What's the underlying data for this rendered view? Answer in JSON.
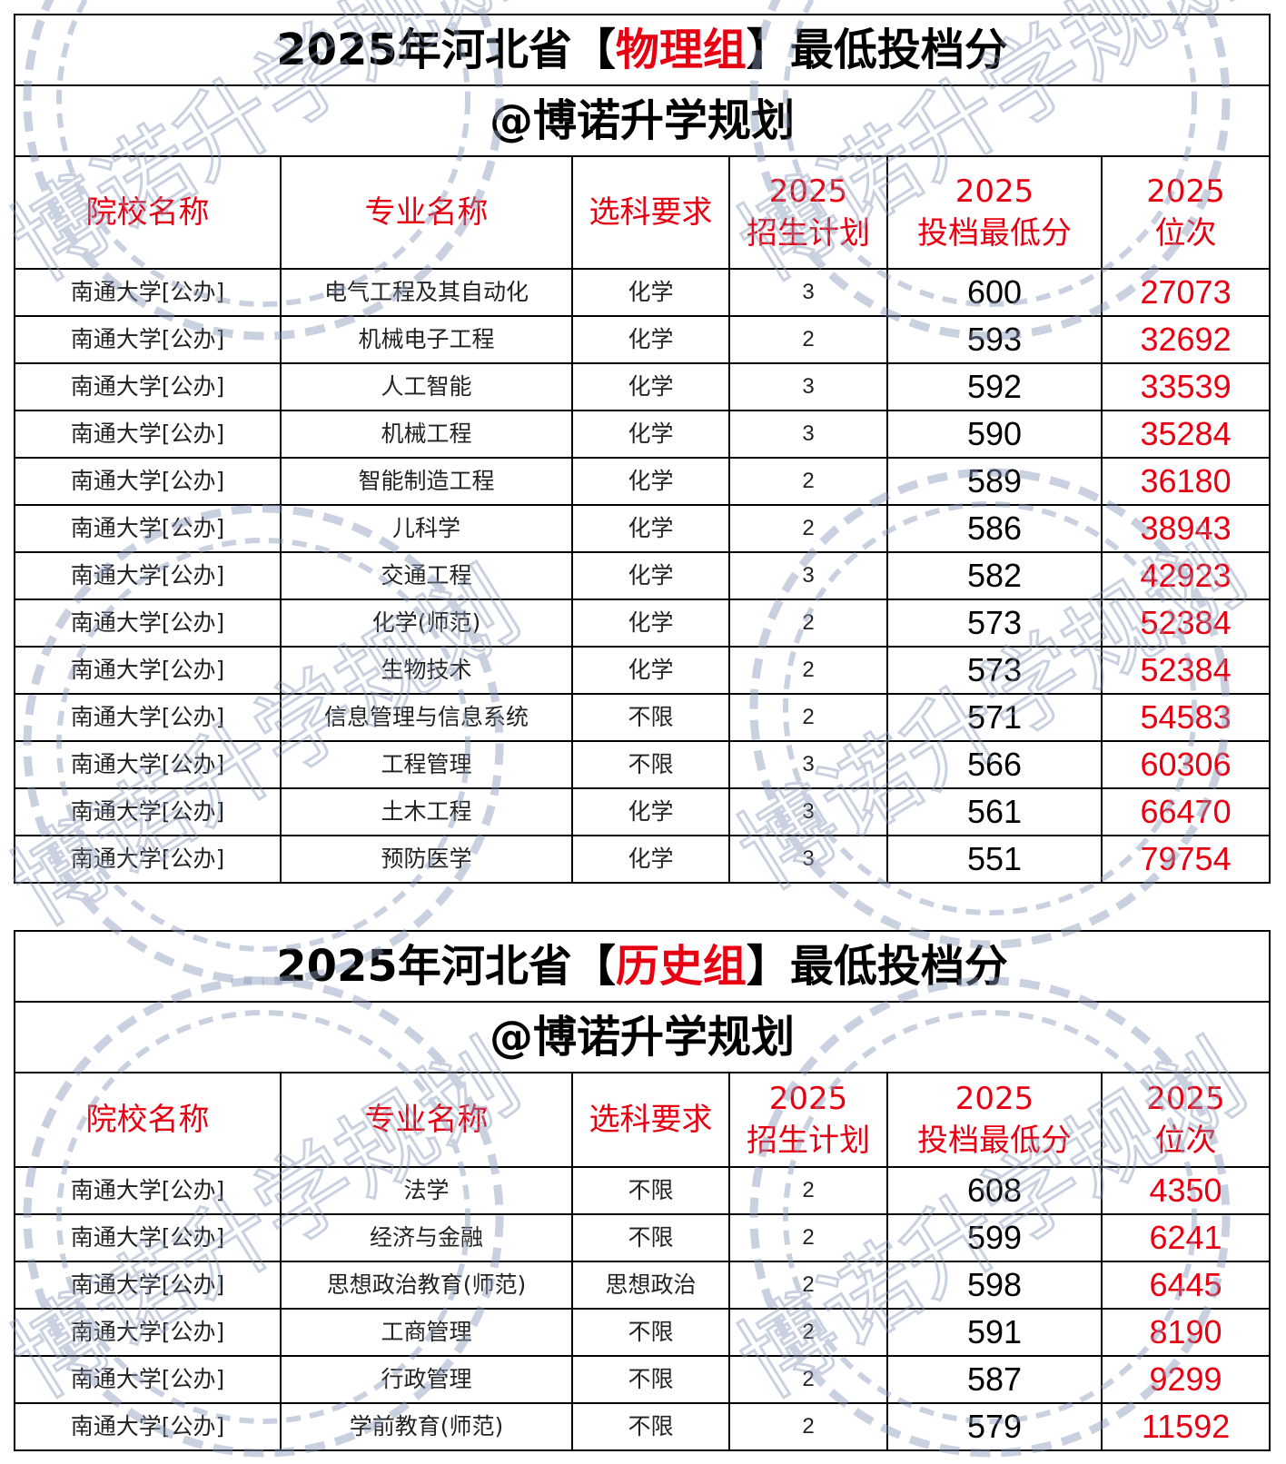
{
  "watermark": "博诺升学规划",
  "colors": {
    "accent": "#e60012",
    "watermark": "#8a9bbb"
  },
  "tables": [
    {
      "title_prefix": "2025年河北省【",
      "title_group": "物理组",
      "title_suffix": "】最低投档分",
      "subtitle": "@博诺升学规划",
      "headers": [
        "院校名称",
        "专业名称",
        "选科要求",
        "2025\n招生计划",
        "2025\n投档最低分",
        "2025\n位次"
      ],
      "rows": [
        [
          "南通大学[公办]",
          "电气工程及其自动化",
          "化学",
          "3",
          "600",
          "27073"
        ],
        [
          "南通大学[公办]",
          "机械电子工程",
          "化学",
          "2",
          "593",
          "32692"
        ],
        [
          "南通大学[公办]",
          "人工智能",
          "化学",
          "3",
          "592",
          "33539"
        ],
        [
          "南通大学[公办]",
          "机械工程",
          "化学",
          "3",
          "590",
          "35284"
        ],
        [
          "南通大学[公办]",
          "智能制造工程",
          "化学",
          "2",
          "589",
          "36180"
        ],
        [
          "南通大学[公办]",
          "儿科学",
          "化学",
          "2",
          "586",
          "38943"
        ],
        [
          "南通大学[公办]",
          "交通工程",
          "化学",
          "3",
          "582",
          "42923"
        ],
        [
          "南通大学[公办]",
          "化学(师范)",
          "化学",
          "2",
          "573",
          "52384"
        ],
        [
          "南通大学[公办]",
          "生物技术",
          "化学",
          "2",
          "573",
          "52384"
        ],
        [
          "南通大学[公办]",
          "信息管理与信息系统",
          "不限",
          "2",
          "571",
          "54583"
        ],
        [
          "南通大学[公办]",
          "工程管理",
          "不限",
          "3",
          "566",
          "60306"
        ],
        [
          "南通大学[公办]",
          "土木工程",
          "化学",
          "3",
          "561",
          "66470"
        ],
        [
          "南通大学[公办]",
          "预防医学",
          "化学",
          "3",
          "551",
          "79754"
        ]
      ]
    },
    {
      "title_prefix": "2025年河北省【",
      "title_group": "历史组",
      "title_suffix": "】最低投档分",
      "subtitle": "@博诺升学规划",
      "headers": [
        "院校名称",
        "专业名称",
        "选科要求",
        "2025\n招生计划",
        "2025\n投档最低分",
        "2025\n位次"
      ],
      "rows": [
        [
          "南通大学[公办]",
          "法学",
          "不限",
          "2",
          "608",
          "4350"
        ],
        [
          "南通大学[公办]",
          "经济与金融",
          "不限",
          "2",
          "599",
          "6241"
        ],
        [
          "南通大学[公办]",
          "思想政治教育(师范)",
          "思想政治",
          "2",
          "598",
          "6445"
        ],
        [
          "南通大学[公办]",
          "工商管理",
          "不限",
          "2",
          "591",
          "8190"
        ],
        [
          "南通大学[公办]",
          "行政管理",
          "不限",
          "2",
          "587",
          "9299"
        ],
        [
          "南通大学[公办]",
          "学前教育(师范)",
          "不限",
          "2",
          "579",
          "11592"
        ]
      ]
    }
  ]
}
